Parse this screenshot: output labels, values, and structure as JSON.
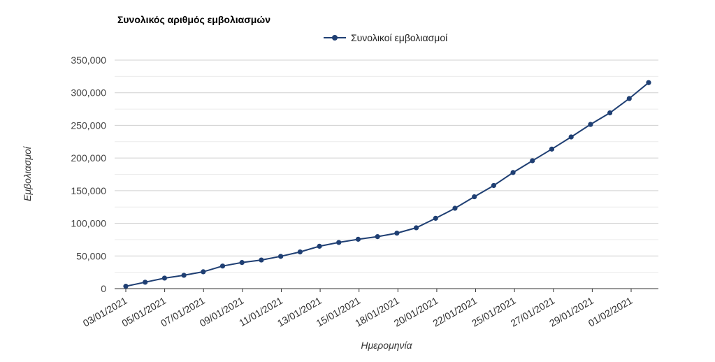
{
  "chart_data": {
    "type": "line",
    "title": "Συνολικός αριθμός εμβολιασμών",
    "xlabel": "Ημερομηνία",
    "ylabel": "Εμβολιασμοί",
    "ylim": [
      0,
      350000
    ],
    "y_ticks": [
      "0",
      "50,000",
      "100,000",
      "150,000",
      "200,000",
      "250,000",
      "300,000",
      "350,000"
    ],
    "x_tick_labels": [
      "03/01/2021",
      "05/01/2021",
      "07/01/2021",
      "09/01/2021",
      "11/01/2021",
      "13/01/2021",
      "15/01/2021",
      "18/01/2021",
      "20/01/2021",
      "22/01/2021",
      "25/01/2021",
      "27/01/2021",
      "29/01/2021",
      "01/02/2021"
    ],
    "grid": true,
    "legend_position": "top",
    "colors": {
      "series": "#1f3f73",
      "grid": "#d0d0d0",
      "axis": "#333333"
    },
    "series": [
      {
        "name": "Συνολικοί εμβολιασμοί",
        "values": [
          3600,
          9800,
          16100,
          20400,
          25800,
          34600,
          40000,
          43800,
          49400,
          56200,
          64900,
          70700,
          75600,
          79600,
          85000,
          93200,
          107700,
          123100,
          140700,
          157900,
          177800,
          195900,
          213700,
          232300,
          251500,
          269200,
          291100,
          315500
        ]
      }
    ]
  }
}
